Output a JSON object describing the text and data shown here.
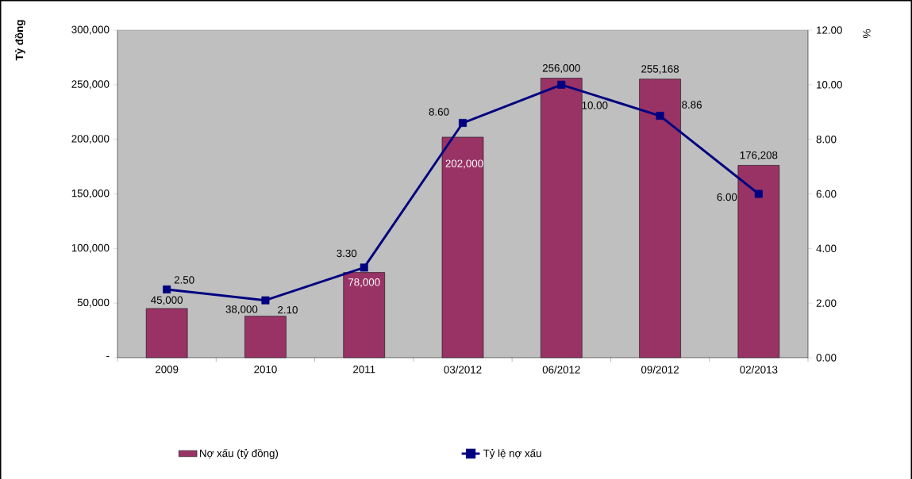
{
  "chart_data": {
    "type": "bar",
    "categories": [
      "2009",
      "2010",
      "2011",
      "03/2012",
      "06/2012",
      "09/2012",
      "02/2013"
    ],
    "ylabel": "Tỷ đồng",
    "y2label": "%",
    "ylim": [
      0,
      300000
    ],
    "yticks": [
      {
        "value": 0,
        "label": "-"
      },
      {
        "value": 50000,
        "label": "50,000"
      },
      {
        "value": 100000,
        "label": "100,000"
      },
      {
        "value": 150000,
        "label": "150,000"
      },
      {
        "value": 200000,
        "label": "200,000"
      },
      {
        "value": 250000,
        "label": "250,000"
      },
      {
        "value": 300000,
        "label": "300,000"
      }
    ],
    "y2lim": [
      0,
      12
    ],
    "y2ticks": [
      {
        "value": 0,
        "label": "0.00"
      },
      {
        "value": 2,
        "label": "2.00"
      },
      {
        "value": 4,
        "label": "4.00"
      },
      {
        "value": 6,
        "label": "6.00"
      },
      {
        "value": 8,
        "label": "8.00"
      },
      {
        "value": 10,
        "label": "10.00"
      },
      {
        "value": 12,
        "label": "12.00"
      }
    ],
    "legend": "bottom",
    "marker": "square",
    "series": [
      {
        "name": "Nợ xấu (tỷ đồng)",
        "type": "bar",
        "color": "#993366",
        "values": [
          45000,
          38000,
          78000,
          202000,
          256000,
          255168,
          176208
        ],
        "value_labels": [
          "45,000",
          "38,000",
          "78,000",
          "202,000",
          "256,000",
          "255,168",
          "176,208"
        ]
      },
      {
        "name": "Tỷ lệ nợ xấu",
        "type": "line",
        "axis": "y2",
        "color": "#000080",
        "values": [
          2.5,
          2.1,
          3.3,
          8.6,
          10,
          8.86,
          6
        ],
        "value_labels": [
          "2.50",
          "2.10",
          "3.30",
          "8.60",
          "10.00",
          "8.86",
          "6.00"
        ]
      }
    ]
  }
}
